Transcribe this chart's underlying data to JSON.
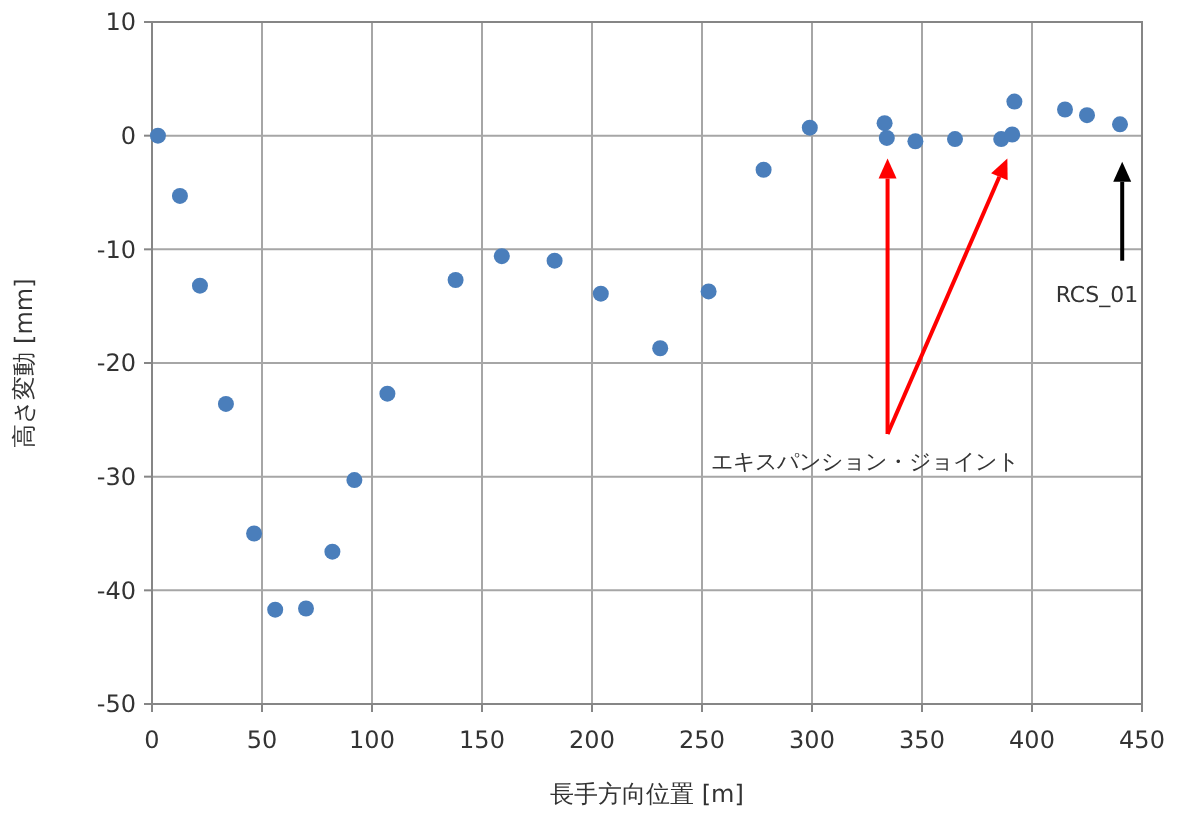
{
  "chart_data": {
    "type": "scatter",
    "xlabel": "長手方向位置 [m]",
    "ylabel": "高さ変動 [mm]",
    "xlim": [
      0,
      450
    ],
    "xticks": [
      0,
      50,
      100,
      150,
      200,
      250,
      300,
      350,
      400,
      450
    ],
    "ylim": [
      -50,
      10
    ],
    "yticks": [
      -50,
      -40,
      -30,
      -20,
      -10,
      0,
      10
    ],
    "grid": true,
    "marker": "circle",
    "annotations": [
      "エキスパンション・ジョイント",
      "RCS_01"
    ],
    "series": [
      {
        "color": "#4a7ebb",
        "x": [
          2.7,
          12.7,
          21.8,
          33.6,
          46.4,
          56,
          70,
          82,
          92,
          107,
          138,
          159,
          183,
          204,
          231,
          253,
          278,
          299,
          333,
          334,
          347,
          365,
          386,
          391,
          392,
          415,
          425,
          440
        ],
        "values": [
          0,
          -5.3,
          -13.2,
          -23.6,
          -35,
          -41.7,
          -41.6,
          -36.6,
          -30.3,
          -22.7,
          -12.7,
          -10.6,
          -11,
          -13.9,
          -18.7,
          -13.7,
          -3,
          0.7,
          1.1,
          -0.2,
          -0.5,
          -0.3,
          -0.3,
          0.1,
          3,
          2.3,
          1.8,
          1
        ]
      }
    ]
  }
}
